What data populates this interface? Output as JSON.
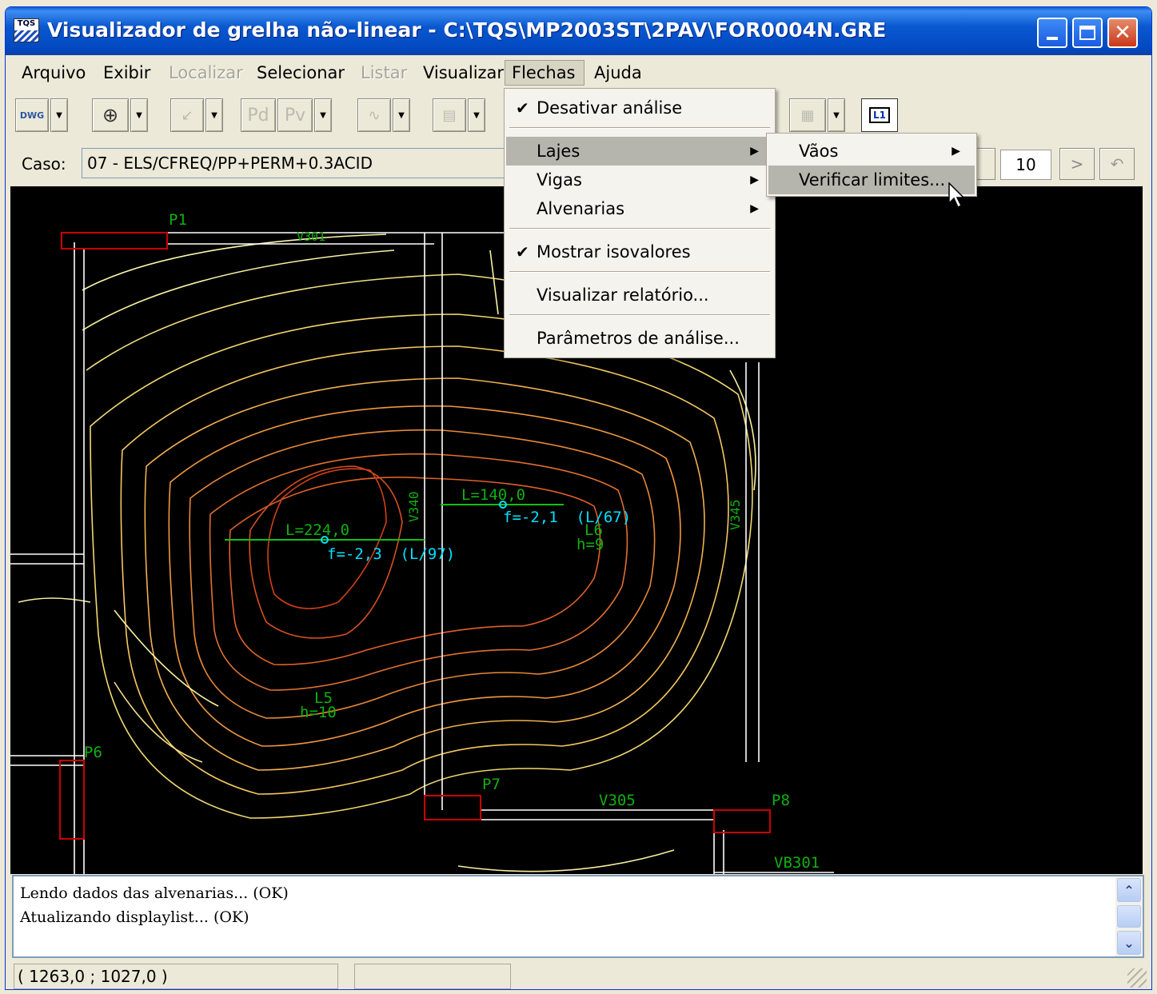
{
  "window": {
    "title": "Visualizador de grelha não-linear - C:\\TQS\\MP2003ST\\2PAV\\FOR0004N.GRE",
    "app_icon_text": "TQS"
  },
  "menubar": {
    "items": [
      {
        "label": "Arquivo",
        "disabled": false
      },
      {
        "label": "Exibir",
        "disabled": false
      },
      {
        "label": "Localizar",
        "disabled": true
      },
      {
        "label": "Selecionar",
        "disabled": false
      },
      {
        "label": "Listar",
        "disabled": true
      },
      {
        "label": "Visualizar",
        "disabled": false
      },
      {
        "label": "Flechas",
        "active": true
      },
      {
        "label": "Ajuda",
        "disabled": false
      }
    ]
  },
  "toolbar": {
    "dwg_label": "DWG",
    "pd_label": "Pd",
    "pv_label": "Pv",
    "l1_label": "L1"
  },
  "casebar": {
    "label": "Caso:",
    "value": "07 - ELS/CFREQ/PP+PERM+0.3ACID",
    "number": "10",
    "next": ">"
  },
  "flechas_menu": {
    "items": [
      {
        "label": "Desativar análise",
        "checked": true
      },
      {
        "label": "Lajes",
        "submenu": true,
        "highlighted": true
      },
      {
        "label": "Vigas",
        "submenu": true
      },
      {
        "label": "Alvenarias",
        "submenu": true
      },
      {
        "label": "Mostrar isovalores",
        "checked": true
      },
      {
        "label": "Visualizar relatório..."
      },
      {
        "label": "Parâmetros de análise..."
      }
    ]
  },
  "lajes_submenu": {
    "items": [
      {
        "label": "Vãos",
        "submenu": true
      },
      {
        "label": "Verificar limites...",
        "highlighted": true
      }
    ]
  },
  "drawing": {
    "labels": {
      "p1": "P1",
      "v301": "V301",
      "v340": "V340",
      "v345": "V345",
      "p6": "P6",
      "p7": "P7",
      "p8": "P8",
      "v305": "V305",
      "vb301": "VB301",
      "l5": "L5",
      "l5h": "h=10",
      "l6": "L6",
      "l6h": "h=9"
    },
    "spans": {
      "left_length": "L=224,0",
      "left_deflection": "f=-2,3  (L/97)",
      "right_length": "L=140,0",
      "right_deflection": "f=-2,1  (L/67)"
    },
    "colors": {
      "background": "#000000",
      "structure": "#ffffff",
      "pillar": "#cc0000",
      "label_green": "#10b010",
      "annotation_cyan": "#00e0ff"
    }
  },
  "console": {
    "lines": [
      "Lendo dados das alvenarias... (OK)",
      "Atualizando displaylist... (OK)"
    ]
  },
  "statusbar": {
    "coordinates": "( 1263,0 ; 1027,0 )"
  }
}
